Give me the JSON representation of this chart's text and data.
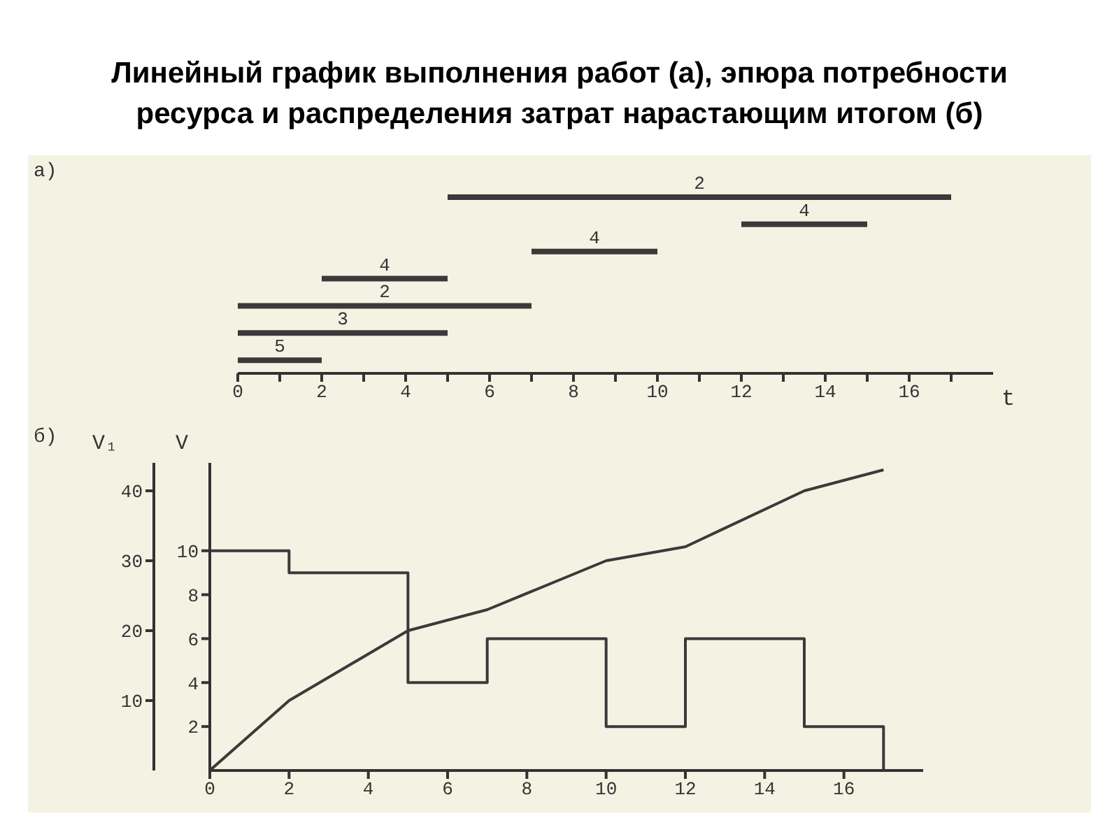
{
  "chart_data": [
    {
      "type": "bar",
      "title": "Линейный график  выполнения работ (а), эпюра потребности ресурса и распределения затрат нарастающим итогом (б)",
      "annotations": [
        "а)",
        "2",
        "4",
        "4",
        "4",
        "2",
        "3",
        "5"
      ],
      "orientation": "horizontal",
      "xlabel": "t",
      "categories": [
        null,
        null,
        null,
        null,
        null,
        null,
        null
      ],
      "series": [
        {
          "color": "#3a3a3a",
          "values": [
            12,
            3,
            3,
            3,
            7,
            5,
            2
          ],
          "base": [
            5,
            12,
            7,
            2,
            0,
            0,
            0
          ]
        }
      ],
      "xlim": [
        0,
        18
      ],
      "xticks": [
        0,
        {
          "value": 1,
          "label": null
        },
        2,
        {
          "value": 3,
          "label": null
        },
        4,
        {
          "value": 5,
          "label": null
        },
        6,
        {
          "value": 7,
          "label": null
        },
        8,
        {
          "value": 9,
          "label": null
        },
        10,
        {
          "value": 11,
          "label": null
        },
        12,
        {
          "value": 13,
          "label": null
        },
        14,
        {
          "value": 15,
          "label": null
        },
        16,
        {
          "value": 17,
          "label": null
        }
      ]
    },
    {
      "type": "line",
      "annotations": [
        "б)"
      ],
      "ylabel": "V",
      "y2label": "V₁",
      "series": [
        {
          "type": "step",
          "color": "#3a3a3a",
          "x": [
            0,
            2,
            5,
            7,
            10,
            12,
            15,
            17
          ],
          "values": [
            10,
            9,
            4,
            6,
            2,
            6,
            2,
            0
          ]
        },
        {
          "type": "line",
          "axis": "y2",
          "color": "#3a3a3a",
          "x": [
            0,
            2,
            5,
            7,
            10,
            12,
            15,
            17
          ],
          "values": [
            0,
            10,
            20,
            23,
            30,
            32,
            40,
            43
          ]
        }
      ],
      "xlim": [
        0,
        18
      ],
      "xticks": [
        0,
        2,
        4,
        6,
        8,
        10,
        12,
        14,
        16
      ],
      "ylim": [
        0,
        14
      ],
      "yticks": [
        2,
        4,
        6,
        8,
        10
      ],
      "y2lim": [
        0,
        44
      ],
      "y2ticks": [
        10,
        20,
        30,
        40
      ]
    }
  ]
}
